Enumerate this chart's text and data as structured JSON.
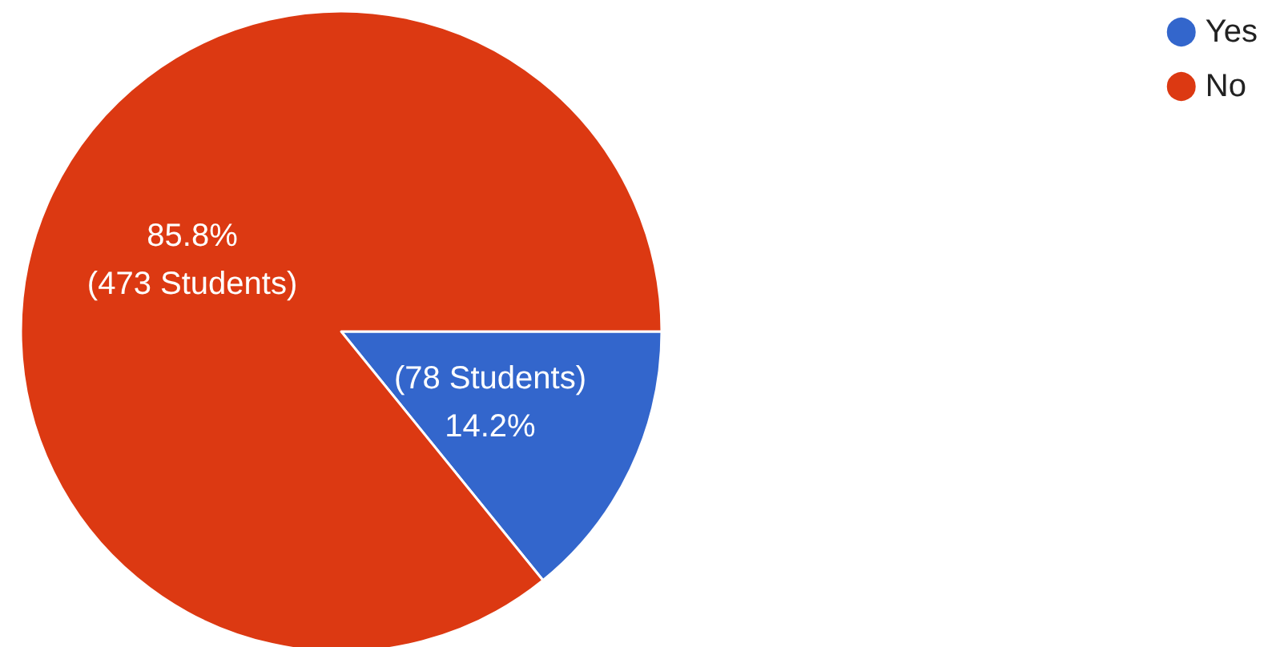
{
  "chart_data": {
    "type": "pie",
    "categories": [
      "Yes",
      "No"
    ],
    "values": [
      78,
      473
    ],
    "colors": [
      "#3366cc",
      "#dc3912"
    ],
    "value_labels": [
      "(78 Students)\n14.2%",
      "85.8%\n(473 Students)"
    ],
    "legend": "top right"
  }
}
